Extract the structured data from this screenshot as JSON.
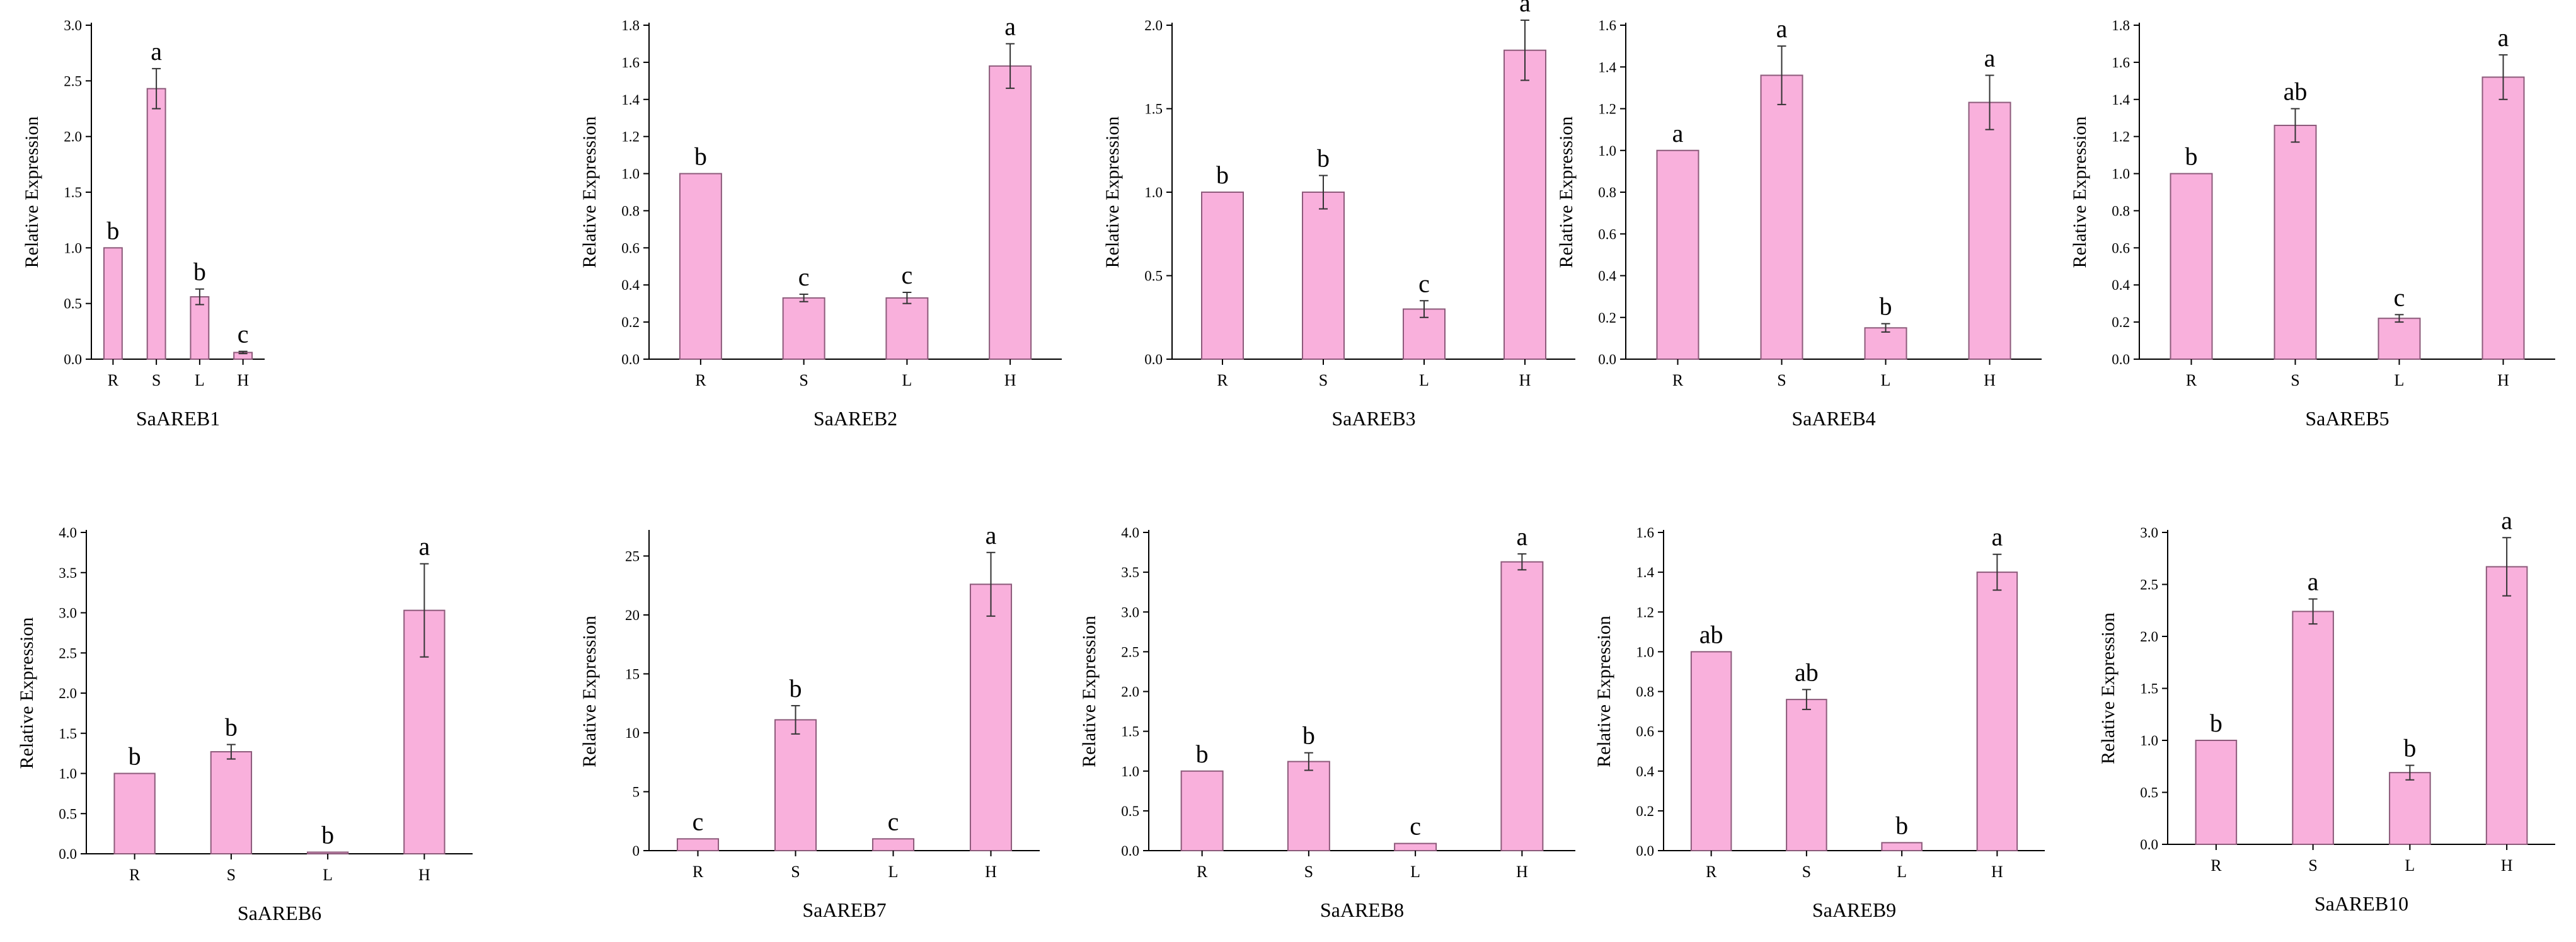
{
  "chart_data": [
    {
      "type": "bar",
      "title": "SaAREB1",
      "ylabel": "Relative Expression",
      "xlabel": "",
      "categories": [
        "R",
        "S",
        "L",
        "H"
      ],
      "values": [
        1.0,
        2.43,
        0.56,
        0.06
      ],
      "errors": [
        0.0,
        0.18,
        0.07,
        0.01
      ],
      "significance": [
        "b",
        "a",
        "b",
        "c"
      ],
      "ylim": [
        0,
        3.0
      ],
      "yticks": [
        "0.0",
        "0.5",
        "1.0",
        "1.5",
        "2.0",
        "2.5",
        "3.0"
      ]
    },
    {
      "type": "bar",
      "title": "SaAREB2",
      "ylabel": "Relative Expression",
      "xlabel": "",
      "categories": [
        "R",
        "S",
        "L",
        "H"
      ],
      "values": [
        1.0,
        0.33,
        0.33,
        1.58
      ],
      "errors": [
        0.0,
        0.02,
        0.03,
        0.12
      ],
      "significance": [
        "b",
        "c",
        "c",
        "a"
      ],
      "ylim": [
        0,
        1.8
      ],
      "yticks": [
        "0.0",
        "0.2",
        "0.4",
        "0.6",
        "0.8",
        "1.0",
        "1.2",
        "1.4",
        "1.6",
        "1.8"
      ]
    },
    {
      "type": "bar",
      "title": "SaAREB3",
      "ylabel": "Relative Expression",
      "xlabel": "",
      "categories": [
        "R",
        "S",
        "L",
        "H"
      ],
      "values": [
        1.0,
        1.0,
        0.3,
        1.85
      ],
      "errors": [
        0.0,
        0.1,
        0.05,
        0.18
      ],
      "significance": [
        "b",
        "b",
        "c",
        "a"
      ],
      "ylim": [
        0,
        2.0
      ],
      "yticks": [
        "0.0",
        "0.5",
        "1.0",
        "1.5",
        "2.0"
      ]
    },
    {
      "type": "bar",
      "title": "SaAREB4",
      "ylabel": "Relative Expression",
      "xlabel": "",
      "categories": [
        "R",
        "S",
        "L",
        "H"
      ],
      "values": [
        1.0,
        1.36,
        0.15,
        1.23
      ],
      "errors": [
        0.0,
        0.14,
        0.02,
        0.13
      ],
      "significance": [
        "a",
        "a",
        "b",
        "a"
      ],
      "ylim": [
        0,
        1.6
      ],
      "yticks": [
        "0.0",
        "0.2",
        "0.4",
        "0.6",
        "0.8",
        "1.0",
        "1.2",
        "1.4",
        "1.6"
      ]
    },
    {
      "type": "bar",
      "title": "SaAREB5",
      "ylabel": "Relative Expression",
      "xlabel": "",
      "categories": [
        "R",
        "S",
        "L",
        "H"
      ],
      "values": [
        1.0,
        1.26,
        0.22,
        1.52
      ],
      "errors": [
        0.0,
        0.09,
        0.02,
        0.12
      ],
      "significance": [
        "b",
        "ab",
        "c",
        "a"
      ],
      "ylim": [
        0,
        1.8
      ],
      "yticks": [
        "0.0",
        "0.2",
        "0.4",
        "0.6",
        "0.8",
        "1.0",
        "1.2",
        "1.4",
        "1.6",
        "1.8"
      ]
    },
    {
      "type": "bar",
      "title": "SaAREB6",
      "ylabel": "Relative Expression",
      "xlabel": "",
      "categories": [
        "R",
        "S",
        "L",
        "H"
      ],
      "values": [
        1.0,
        1.27,
        0.02,
        3.03
      ],
      "errors": [
        0.0,
        0.09,
        0.0,
        0.58
      ],
      "significance": [
        "b",
        "b",
        "b",
        "a"
      ],
      "ylim": [
        0,
        4.0
      ],
      "yticks": [
        "0.0",
        "0.5",
        "1.0",
        "1.5",
        "2.0",
        "2.5",
        "3.0",
        "3.5",
        "4.0"
      ]
    },
    {
      "type": "bar",
      "title": "SaAREB7",
      "ylabel": "Relative Expression",
      "xlabel": "",
      "categories": [
        "R",
        "S",
        "L",
        "H"
      ],
      "values": [
        1.0,
        11.1,
        1.0,
        22.6
      ],
      "errors": [
        0.0,
        1.2,
        0.0,
        2.7
      ],
      "significance": [
        "c",
        "b",
        "c",
        "a"
      ],
      "ylim": [
        0,
        27
      ],
      "yticks": [
        "0",
        "5",
        "10",
        "15",
        "20",
        "25"
      ]
    },
    {
      "type": "bar",
      "title": "SaAREB8",
      "ylabel": "Relative Expression",
      "xlabel": "",
      "categories": [
        "R",
        "S",
        "L",
        "H"
      ],
      "values": [
        1.0,
        1.12,
        0.09,
        3.63
      ],
      "errors": [
        0.0,
        0.11,
        0.0,
        0.1
      ],
      "significance": [
        "b",
        "b",
        "c",
        "a"
      ],
      "ylim": [
        0,
        4.0
      ],
      "yticks": [
        "0.0",
        "0.5",
        "1.0",
        "1.5",
        "2.0",
        "2.5",
        "3.0",
        "3.5",
        "4.0"
      ]
    },
    {
      "type": "bar",
      "title": "SaAREB9",
      "ylabel": "Relative Expression",
      "xlabel": "",
      "categories": [
        "R",
        "S",
        "L",
        "H"
      ],
      "values": [
        1.0,
        0.76,
        0.04,
        1.4
      ],
      "errors": [
        0.0,
        0.05,
        0.0,
        0.09
      ],
      "significance": [
        "ab",
        "ab",
        "b",
        "a"
      ],
      "ylim": [
        0,
        1.6
      ],
      "yticks": [
        "0.0",
        "0.2",
        "0.4",
        "0.6",
        "0.8",
        "1.0",
        "1.2",
        "1.4",
        "1.6"
      ]
    },
    {
      "type": "bar",
      "title": "SaAREB10",
      "ylabel": "Relative Expression",
      "xlabel": "",
      "categories": [
        "R",
        "S",
        "L",
        "H"
      ],
      "values": [
        1.0,
        2.24,
        0.69,
        2.67
      ],
      "errors": [
        0.0,
        0.12,
        0.07,
        0.28
      ],
      "significance": [
        "b",
        "a",
        "b",
        "a"
      ],
      "ylim": [
        0,
        3.0
      ],
      "yticks": [
        "0.0",
        "0.5",
        "1.0",
        "1.5",
        "2.0",
        "2.5",
        "3.0"
      ]
    }
  ]
}
